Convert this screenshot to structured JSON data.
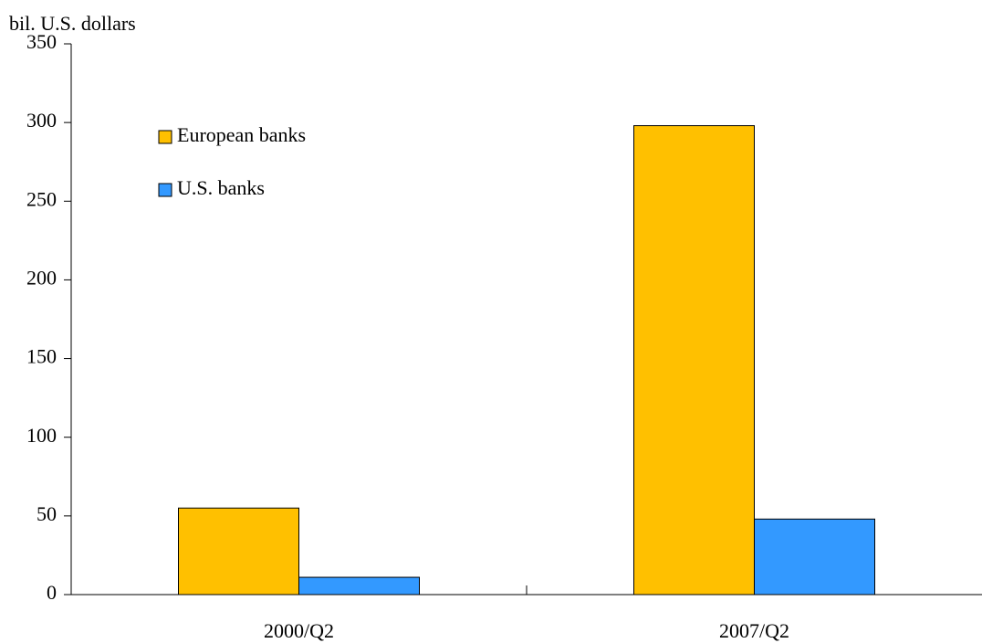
{
  "chart_data": {
    "type": "bar",
    "y_label": "bil. U.S. dollars",
    "categories": [
      "2000/Q2",
      "2007/Q2"
    ],
    "series": [
      {
        "name": "European banks",
        "color": "#ffc000",
        "values": [
          55,
          298
        ]
      },
      {
        "name": "U.S. banks",
        "color": "#3399ff",
        "values": [
          11,
          48
        ]
      }
    ],
    "ylim": [
      0,
      350
    ],
    "yticks": [
      0,
      50,
      100,
      150,
      200,
      250,
      300,
      350
    ],
    "legend": "upper left"
  }
}
